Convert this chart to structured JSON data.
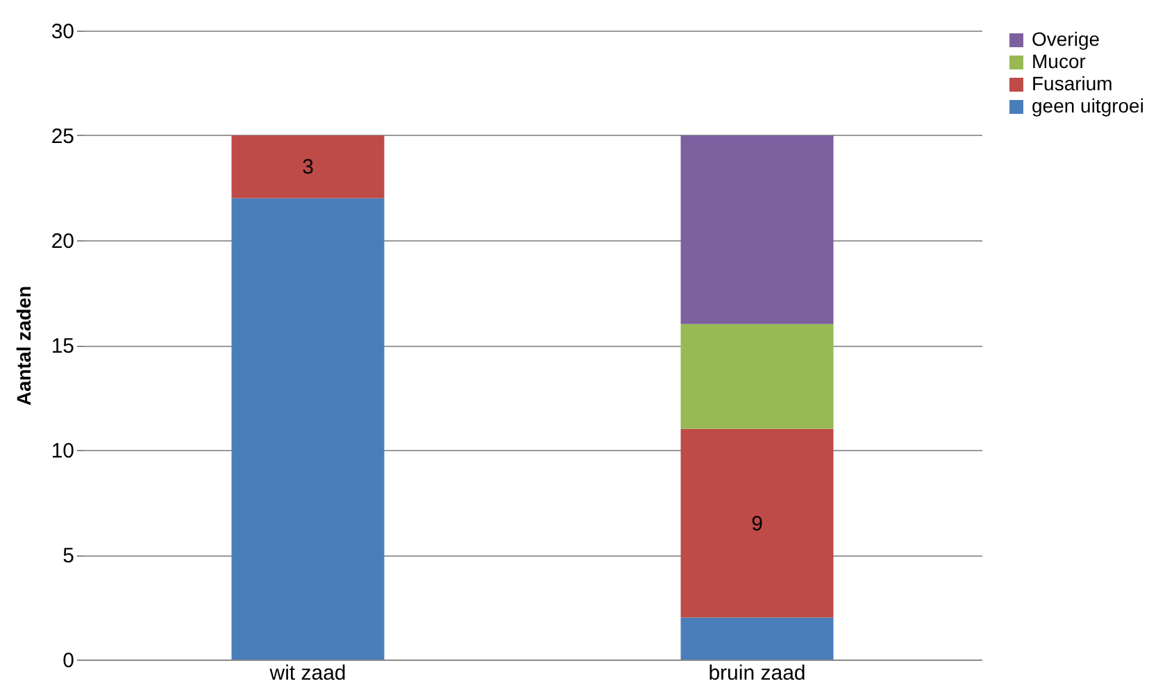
{
  "chart_data": {
    "type": "bar",
    "stacked": true,
    "ylabel": "Aantal zaden",
    "categories": [
      "wit zaad",
      "bruin zaad"
    ],
    "series": [
      {
        "name": "geen uitgroei",
        "color": "#4a7ebb",
        "values": [
          22,
          2
        ]
      },
      {
        "name": "Fusarium",
        "color": "#be4b48",
        "values": [
          3,
          9
        ],
        "value_labels": [
          "3",
          "9"
        ]
      },
      {
        "name": "Mucor",
        "color": "#98b954",
        "values": [
          0,
          5
        ]
      },
      {
        "name": "Overige",
        "color": "#7d60a0",
        "values": [
          0,
          9
        ]
      }
    ],
    "ylim": [
      0,
      30
    ],
    "yticks": [
      0,
      5,
      10,
      15,
      20,
      25,
      30
    ],
    "grid": "y",
    "legend": "right"
  }
}
